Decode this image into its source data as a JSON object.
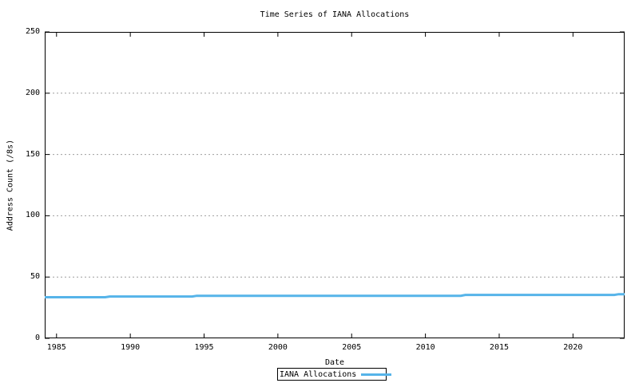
{
  "chart_data": {
    "type": "line",
    "title": "Time Series of IANA Allocations",
    "xlabel": "Date",
    "ylabel": "Address Count (/8s)",
    "xlim": [
      1984.2,
      2023.5
    ],
    "ylim": [
      0,
      250
    ],
    "x_ticks": [
      1985,
      1990,
      1995,
      2000,
      2005,
      2010,
      2015,
      2020
    ],
    "y_ticks": [
      0,
      50,
      100,
      150,
      200,
      250
    ],
    "grid": "horizontal-dotted",
    "legend_position": "below-x-axis-center",
    "series": [
      {
        "name": "IANA Allocations",
        "color": "#56B4E9",
        "points": [
          [
            1984.2,
            33.5
          ],
          [
            1988.3,
            33.5
          ],
          [
            1988.6,
            34.1
          ],
          [
            1994.2,
            34.1
          ],
          [
            1994.5,
            34.7
          ],
          [
            2012.4,
            34.7
          ],
          [
            2012.7,
            35.4
          ],
          [
            2022.8,
            35.4
          ],
          [
            2023.1,
            36.0
          ],
          [
            2023.5,
            36.0
          ]
        ]
      }
    ]
  },
  "colors": {
    "line": "#56B4E9",
    "grid": "#9e9e9e",
    "axis": "#000000",
    "background": "#ffffff",
    "text": "#000000"
  },
  "legend": {
    "label": "IANA Allocations"
  }
}
